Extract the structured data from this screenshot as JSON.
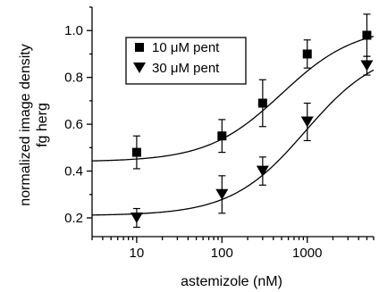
{
  "chart_data": {
    "type": "scatter",
    "x_scale": "log",
    "xlabel": "astemizole (nM)",
    "ylabel_line1": "normalized image density",
    "ylabel_line2": "fg herg",
    "xlim": [
      3,
      6000
    ],
    "ylim": [
      0.12,
      1.1
    ],
    "x_ticks": [
      10,
      100,
      1000
    ],
    "x_tick_labels": [
      "10",
      "100",
      "1000"
    ],
    "y_ticks": [
      0.2,
      0.4,
      0.6,
      0.8,
      1.0
    ],
    "y_tick_labels": [
      "0.2",
      "0.4",
      "0.6",
      "0.8",
      "1.0"
    ],
    "grid": false,
    "legend_position": "top-left",
    "series": [
      {
        "name": "10 μM pent",
        "marker": "square",
        "x": [
          10,
          100,
          300,
          1000,
          5000
        ],
        "y": [
          0.48,
          0.55,
          0.69,
          0.9,
          0.98
        ],
        "err": [
          0.07,
          0.07,
          0.1,
          0.06,
          0.09
        ],
        "fit": {
          "bottom": 0.44,
          "top": 1.02,
          "ec50": 500,
          "hill": 1.0
        }
      },
      {
        "name": "30 μM pent",
        "marker": "triangle-down",
        "x": [
          10,
          100,
          300,
          1000,
          5000
        ],
        "y": [
          0.2,
          0.3,
          0.4,
          0.61,
          0.85
        ],
        "err": [
          0.04,
          0.08,
          0.06,
          0.08,
          0.04
        ],
        "fit": {
          "bottom": 0.21,
          "top": 0.93,
          "ec50": 950,
          "hill": 1.0
        }
      }
    ]
  }
}
